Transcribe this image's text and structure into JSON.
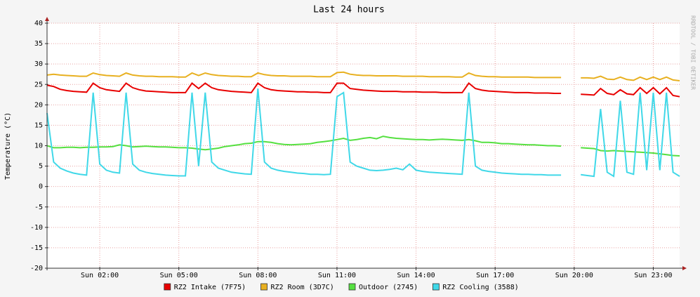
{
  "chart_data": {
    "type": "line",
    "title": "Last 24 hours",
    "y_label": "Temperature (°C)",
    "side_text": "RRDTOOL / TOBI OETIKER",
    "x": [
      0,
      0.25,
      0.5,
      0.75,
      1,
      1.25,
      1.5,
      1.75,
      2,
      2.25,
      2.5,
      2.75,
      3,
      3.25,
      3.5,
      3.75,
      4,
      4.25,
      4.5,
      4.75,
      5,
      5.25,
      5.5,
      5.75,
      6,
      6.25,
      6.5,
      6.75,
      7,
      7.25,
      7.5,
      7.75,
      8,
      8.25,
      8.5,
      8.75,
      9,
      9.25,
      9.5,
      9.75,
      10,
      10.25,
      10.5,
      10.75,
      11,
      11.25,
      11.5,
      11.75,
      12,
      12.25,
      12.5,
      12.75,
      13,
      13.25,
      13.5,
      13.75,
      14,
      14.25,
      14.5,
      14.75,
      15,
      15.25,
      15.5,
      15.75,
      16,
      16.25,
      16.5,
      16.75,
      17,
      17.25,
      17.5,
      17.75,
      18,
      18.25,
      18.5,
      18.75,
      19,
      19.25,
      19.5,
      19.75,
      20,
      20.25,
      20.5,
      20.75,
      21,
      21.25,
      21.5,
      21.75,
      22,
      22.25,
      22.5,
      22.75,
      23,
      23.25,
      23.5,
      23.75,
      24
    ],
    "series": [
      {
        "name": "RZ2 Intake (7F75)",
        "color": "#e80000",
        "values": [
          24.8,
          24.5,
          23.8,
          23.5,
          23.3,
          23.2,
          23.1,
          25.3,
          24.2,
          23.7,
          23.5,
          23.3,
          25.3,
          24.2,
          23.7,
          23.4,
          23.3,
          23.2,
          23.1,
          23,
          23,
          23,
          25.3,
          24,
          25.3,
          24.2,
          23.7,
          23.5,
          23.3,
          23.2,
          23.1,
          23,
          25.3,
          24.2,
          23.7,
          23.5,
          23.4,
          23.3,
          23.2,
          23.2,
          23.1,
          23.1,
          23,
          23,
          25.3,
          25.3,
          24,
          23.8,
          23.6,
          23.5,
          23.4,
          23.3,
          23.3,
          23.3,
          23.2,
          23.2,
          23.2,
          23.1,
          23.1,
          23.1,
          23,
          23,
          23,
          23,
          25.3,
          24,
          23.6,
          23.4,
          23.3,
          23.2,
          23.1,
          23,
          23,
          23,
          22.9,
          22.9,
          22.9,
          22.8,
          22.8,
          null,
          null,
          22.6,
          22.5,
          22.4,
          24,
          22.8,
          22.5,
          23.7,
          22.7,
          22.5,
          24.2,
          22.8,
          24.2,
          22.7,
          24.2,
          22.3,
          22
        ]
      },
      {
        "name": "RZ2 Room (3D7C)",
        "color": "#e8b020",
        "values": [
          27.3,
          27.5,
          27.3,
          27.2,
          27.1,
          27,
          27,
          27.8,
          27.4,
          27.2,
          27.1,
          27,
          27.8,
          27.3,
          27.1,
          27,
          27,
          26.9,
          26.9,
          26.9,
          26.8,
          26.8,
          27.8,
          27.2,
          27.8,
          27.4,
          27.2,
          27.1,
          27,
          27,
          26.9,
          26.9,
          27.8,
          27.4,
          27.2,
          27.1,
          27.1,
          27,
          27,
          27,
          27,
          26.9,
          26.9,
          26.9,
          27.9,
          28,
          27.5,
          27.3,
          27.2,
          27.2,
          27.1,
          27.1,
          27.1,
          27.1,
          27,
          27,
          27,
          27,
          26.9,
          26.9,
          26.9,
          26.9,
          26.8,
          26.8,
          27.8,
          27.2,
          27,
          26.9,
          26.9,
          26.8,
          26.8,
          26.8,
          26.8,
          26.8,
          26.7,
          26.7,
          26.7,
          26.7,
          26.7,
          null,
          null,
          26.6,
          26.6,
          26.5,
          27,
          26.3,
          26.2,
          26.8,
          26.2,
          26,
          26.8,
          26.2,
          26.8,
          26.2,
          26.8,
          26.1,
          25.9
        ]
      },
      {
        "name": "Outdoor (2745)",
        "color": "#55e040",
        "values": [
          10,
          9.5,
          9.5,
          9.6,
          9.6,
          9.5,
          9.6,
          9.6,
          9.7,
          9.7,
          9.8,
          10.2,
          10,
          9.7,
          9.8,
          9.9,
          9.8,
          9.7,
          9.7,
          9.6,
          9.5,
          9.5,
          9.4,
          9.2,
          9,
          9.2,
          9.4,
          9.8,
          10,
          10.2,
          10.5,
          10.6,
          11,
          11,
          10.8,
          10.5,
          10.3,
          10.2,
          10.3,
          10.4,
          10.5,
          10.8,
          11,
          11.2,
          11.5,
          11.8,
          11.3,
          11.5,
          11.8,
          12,
          11.7,
          12.3,
          12,
          11.8,
          11.7,
          11.6,
          11.5,
          11.5,
          11.4,
          11.5,
          11.6,
          11.5,
          11.4,
          11.3,
          11.5,
          11.2,
          10.8,
          10.8,
          10.7,
          10.5,
          10.5,
          10.4,
          10.3,
          10.2,
          10.2,
          10.1,
          10,
          10,
          9.9,
          null,
          null,
          9.5,
          9.4,
          9.3,
          8.8,
          8.7,
          8.8,
          8.7,
          8.6,
          8.5,
          8.4,
          8.3,
          8.2,
          8,
          7.8,
          7.6,
          7.5
        ]
      },
      {
        "name": "RZ2 Cooling (3588)",
        "color": "#40d8e8",
        "values": [
          18,
          6,
          4.5,
          3.8,
          3.3,
          3,
          2.8,
          23,
          5.5,
          4,
          3.5,
          3.3,
          23,
          5.5,
          4,
          3.5,
          3.2,
          3,
          2.8,
          2.7,
          2.6,
          2.6,
          23,
          5,
          23,
          6,
          4.5,
          4,
          3.5,
          3.3,
          3.1,
          3,
          24,
          6,
          4.5,
          4,
          3.7,
          3.5,
          3.3,
          3.2,
          3,
          3,
          2.9,
          3,
          22,
          23,
          6,
          5,
          4.5,
          4,
          3.9,
          4,
          4.2,
          4.5,
          4.1,
          5.5,
          4,
          3.7,
          3.5,
          3.4,
          3.3,
          3.2,
          3.1,
          3,
          23,
          5,
          4,
          3.7,
          3.5,
          3.3,
          3.2,
          3.1,
          3,
          3,
          2.9,
          2.9,
          2.8,
          2.8,
          2.8,
          null,
          null,
          2.9,
          2.7,
          2.5,
          19,
          3.5,
          2.5,
          21,
          3.5,
          3,
          23,
          4,
          23,
          4,
          23,
          3.5,
          2.5
        ]
      }
    ],
    "xlim": [
      0,
      24
    ],
    "xticks": [
      {
        "value": 2,
        "label": "Sun 02:00"
      },
      {
        "value": 5,
        "label": "Sun 05:00"
      },
      {
        "value": 8,
        "label": "Sun 08:00"
      },
      {
        "value": 11,
        "label": "Sun 11:00"
      },
      {
        "value": 14,
        "label": "Sun 14:00"
      },
      {
        "value": 17,
        "label": "Sun 17:00"
      },
      {
        "value": 20,
        "label": "Sun 20:00"
      },
      {
        "value": 23,
        "label": "Sun 23:00"
      }
    ],
    "ylim": [
      -20,
      40
    ],
    "yticks": [
      -20,
      -15,
      -10,
      -5,
      0,
      5,
      10,
      15,
      20,
      25,
      30,
      35,
      40
    ],
    "grid": true,
    "legend": "bottom"
  }
}
